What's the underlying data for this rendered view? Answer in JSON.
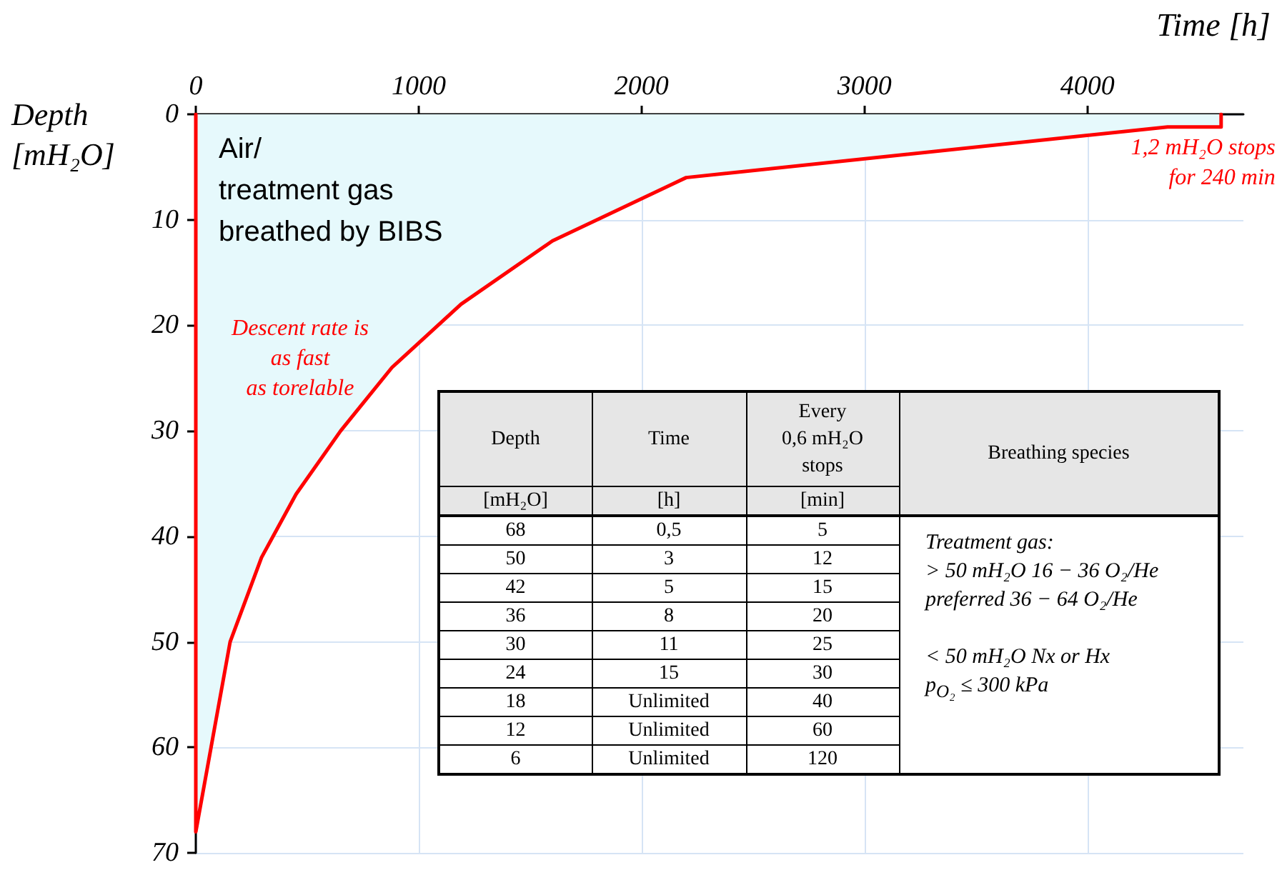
{
  "chart_data": [
    {
      "type": "area",
      "xlabel": "Time [h]",
      "ylabel": "Depth [mH₂O]",
      "xlim": [
        0,
        4700
      ],
      "ylim": [
        70,
        0
      ],
      "xticks": [
        0,
        1000,
        2000,
        3000,
        4000
      ],
      "yticks": [
        0,
        10,
        20,
        30,
        40,
        50,
        60,
        70
      ],
      "grid": true,
      "marker": "none",
      "series": [
        {
          "color": "#ff0000",
          "x": [
            0,
            0,
            154,
            295,
            450,
            650,
            880,
            1190,
            1600,
            2200,
            4360,
            4600,
            4600
          ],
          "values": [
            0,
            68,
            50,
            42,
            36,
            30,
            24,
            18,
            12,
            6,
            1.2,
            1.2,
            0
          ]
        }
      ],
      "annotations": [
        "Air/\ntreatment gas\nbreathed by BIBS",
        {
          "text": "Descent rate is\nas fast\nas torelable",
          "x": 0,
          "y": 25
        },
        {
          "text": "1,2 mH₂O stops\nfor 240 min",
          "x": 4600,
          "y": 1.2
        }
      ]
    },
    {
      "type": "other",
      "annotations": [
        "Depth",
        "Time",
        "Every\n0,6 mH₂O\nstops",
        "Breathing species",
        "[mH₂O]",
        "[h]",
        "[min]",
        "68",
        "0,5",
        "5",
        "50",
        "3",
        "12",
        "42",
        "5",
        "15",
        "36",
        "8",
        "20",
        "30",
        "11",
        "25",
        "24",
        "15",
        "30",
        "18",
        "Unlimited",
        "40",
        "12",
        "Unlimited",
        "60",
        "6",
        "Unlimited",
        "120",
        "Treatment gas:\n> 50 mH₂O 16 − 36 O₂/He\npreferred 36 − 64 O₂/He\n\n< 50 mH₂O Nx or Hx\np$_{O₂}$ ≤ 300 kPa"
      ]
    }
  ]
}
